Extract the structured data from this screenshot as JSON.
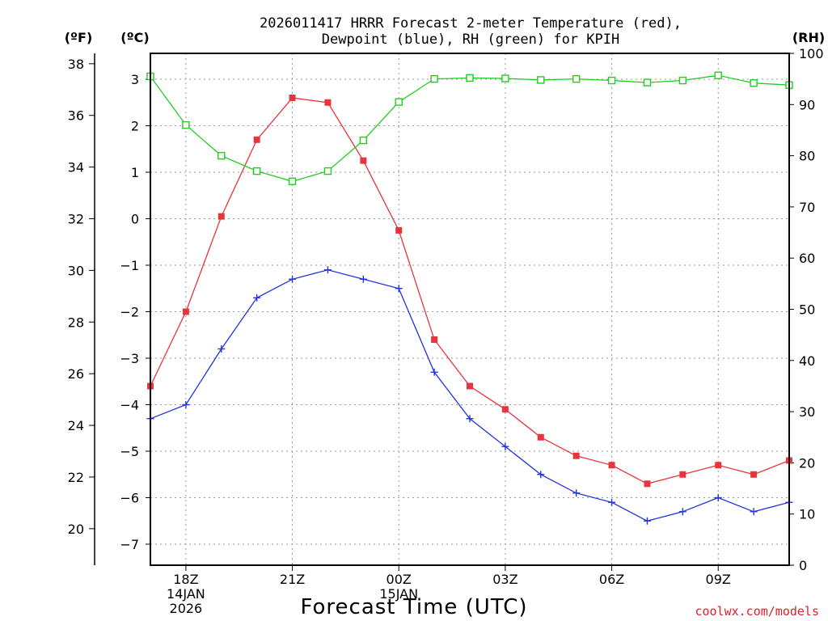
{
  "chart_data": {
    "type": "line",
    "title_lines": [
      "2026011417 HRRR Forecast 2-meter Temperature (red),",
      "Dewpoint (blue), RH (green) for KPIH"
    ],
    "units": {
      "fahrenheit": "(ºF)",
      "celsius": "(ºC)",
      "rh": "(RH)"
    },
    "xlabel": "Forecast Time (UTC)",
    "credit": "coolwx.com/models",
    "x_hours": [
      17,
      18,
      19,
      20,
      21,
      22,
      23,
      24,
      25,
      26,
      27,
      28,
      29,
      30,
      31,
      32,
      33,
      34,
      35
    ],
    "xlim": [
      17,
      35
    ],
    "x_ticks": [
      {
        "hour": 18,
        "lines": [
          "18Z",
          "14JAN",
          "2026"
        ]
      },
      {
        "hour": 21,
        "lines": [
          "21Z"
        ]
      },
      {
        "hour": 24,
        "lines": [
          "00Z",
          "15JAN"
        ]
      },
      {
        "hour": 27,
        "lines": [
          "03Z"
        ]
      },
      {
        "hour": 30,
        "lines": [
          "06Z"
        ]
      },
      {
        "hour": 33,
        "lines": [
          "09Z"
        ]
      }
    ],
    "y_celsius": {
      "ticks": [
        3,
        2,
        1,
        0,
        -1,
        -2,
        -3,
        -4,
        -5,
        -6,
        -7
      ],
      "tick_labels": [
        "3",
        "2",
        "1",
        "0",
        "−1",
        "−2",
        "−3",
        "−4",
        "−5",
        "−6",
        "−7"
      ],
      "ylim": [
        -7.5,
        3.3
      ]
    },
    "y_fahrenheit": {
      "ticks": [
        38,
        36,
        34,
        32,
        30,
        28,
        26,
        24,
        22,
        20
      ],
      "tick_labels": [
        "38",
        "36",
        "34",
        "32",
        "30",
        "28",
        "26",
        "24",
        "22",
        "20"
      ]
    },
    "y_rh": {
      "ticks": [
        100,
        90,
        80,
        70,
        60,
        50,
        40,
        30,
        20,
        10,
        0
      ],
      "tick_labels": [
        "100",
        "90",
        "80",
        "70",
        "60",
        "50",
        "40",
        "30",
        "20",
        "10",
        "0"
      ],
      "ylim": [
        0,
        100
      ]
    },
    "series": [
      {
        "name": "Temperature",
        "color": "#e8343c",
        "marker": "filled-square",
        "axis": "celsius",
        "values": [
          -3.6,
          -2.0,
          0.05,
          1.7,
          2.6,
          2.5,
          1.25,
          -0.25,
          -2.6,
          -3.6,
          -4.1,
          -4.7,
          -5.1,
          -5.3,
          -5.7,
          -5.5,
          -5.3,
          -5.5,
          -5.2
        ]
      },
      {
        "name": "Dewpoint",
        "color": "#2233e0",
        "marker": "plus",
        "axis": "celsius",
        "values": [
          -4.3,
          -4.0,
          -2.8,
          -1.7,
          -1.3,
          -1.1,
          -1.3,
          -1.5,
          -3.3,
          -4.3,
          -4.9,
          -5.5,
          -5.9,
          -6.1,
          -6.5,
          -6.3,
          -6.0,
          -6.3,
          -6.1
        ]
      },
      {
        "name": "RH",
        "color": "#22cc22",
        "marker": "open-square",
        "axis": "rh",
        "values": [
          95.5,
          86,
          80,
          77,
          75,
          77,
          83,
          90.5,
          95,
          95.2,
          95.1,
          94.8,
          95,
          94.7,
          94.3,
          94.7,
          95.7,
          94.2,
          93.8
        ]
      }
    ]
  }
}
